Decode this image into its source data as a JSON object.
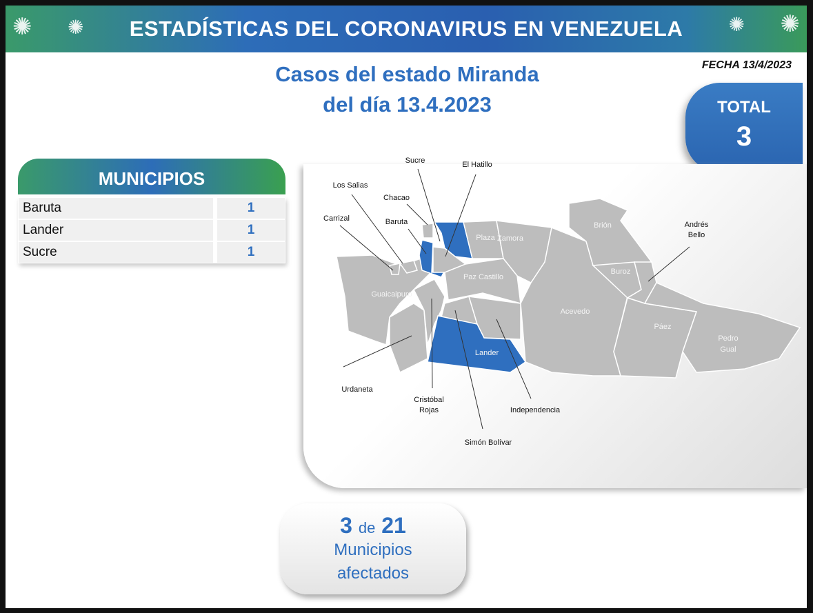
{
  "header": {
    "banner_title": "ESTADÍSTICAS DEL CORONAVIRUS EN VENEZUELA",
    "title_line1": "Casos del estado Miranda",
    "title_line2": "del día 13.4.2023",
    "fecha": "FECHA 13/4/2023"
  },
  "total": {
    "label": "TOTAL",
    "value": "3"
  },
  "municipios": {
    "heading": "MUNICIPIOS",
    "rows": [
      {
        "name": "Baruta",
        "count": "1"
      },
      {
        "name": "Lander",
        "count": "1"
      },
      {
        "name": "Sucre",
        "count": "1"
      }
    ]
  },
  "map": {
    "highlight_color": "#2f6fbf",
    "base_color": "#bdbdbd",
    "inner_labels": [
      "Plaza",
      "Zamora",
      "Brión",
      "Buroz",
      "Paz Castillo",
      "Guaicaipuro",
      "Acevedo",
      "Páez",
      "Pedro Gual",
      "Lander"
    ],
    "callouts": [
      "Sucre",
      "El Hatillo",
      "Los Salias",
      "Chacao",
      "Carrizal",
      "Baruta",
      "Andrés Bello",
      "Urdaneta",
      "Cristóbal Rojas",
      "Independencia",
      "Simón Bolívar"
    ],
    "highlighted": [
      "Baruta",
      "Sucre",
      "Lander"
    ]
  },
  "summary": {
    "affected": "3",
    "de": "de",
    "total": "21",
    "line1": "Municipios",
    "line2": "afectados"
  }
}
